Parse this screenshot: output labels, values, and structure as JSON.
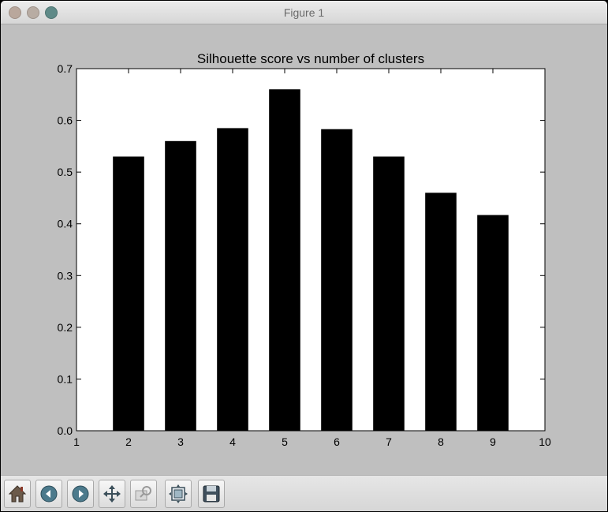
{
  "window": {
    "title": "Figure 1"
  },
  "toolbar": {
    "buttons": [
      {
        "name": "home-button",
        "icon": "home-icon"
      },
      {
        "name": "back-button",
        "icon": "back-arrow-icon"
      },
      {
        "name": "forward-button",
        "icon": "forward-arrow-icon"
      },
      {
        "name": "pan-button",
        "icon": "pan-move-icon"
      },
      {
        "name": "zoom-button",
        "icon": "zoom-rect-icon"
      },
      {
        "name": "subplots-button",
        "icon": "subplots-configure-icon"
      },
      {
        "name": "save-button",
        "icon": "save-floppy-icon"
      }
    ]
  },
  "chart_data": {
    "type": "bar",
    "title": "Silhouette score vs number of clusters",
    "xlabel": "",
    "ylabel": "",
    "x": [
      2,
      3,
      4,
      5,
      6,
      7,
      8,
      9
    ],
    "values": [
      0.53,
      0.56,
      0.585,
      0.66,
      0.583,
      0.53,
      0.46,
      0.417
    ],
    "bar_color": "#000000",
    "xlim": [
      1,
      10
    ],
    "ylim": [
      0.0,
      0.7
    ],
    "xticks": [
      "1",
      "2",
      "3",
      "4",
      "5",
      "6",
      "7",
      "8",
      "9",
      "10"
    ],
    "yticks": [
      "0.0",
      "0.1",
      "0.2",
      "0.3",
      "0.4",
      "0.5",
      "0.6",
      "0.7"
    ],
    "grid": false
  }
}
